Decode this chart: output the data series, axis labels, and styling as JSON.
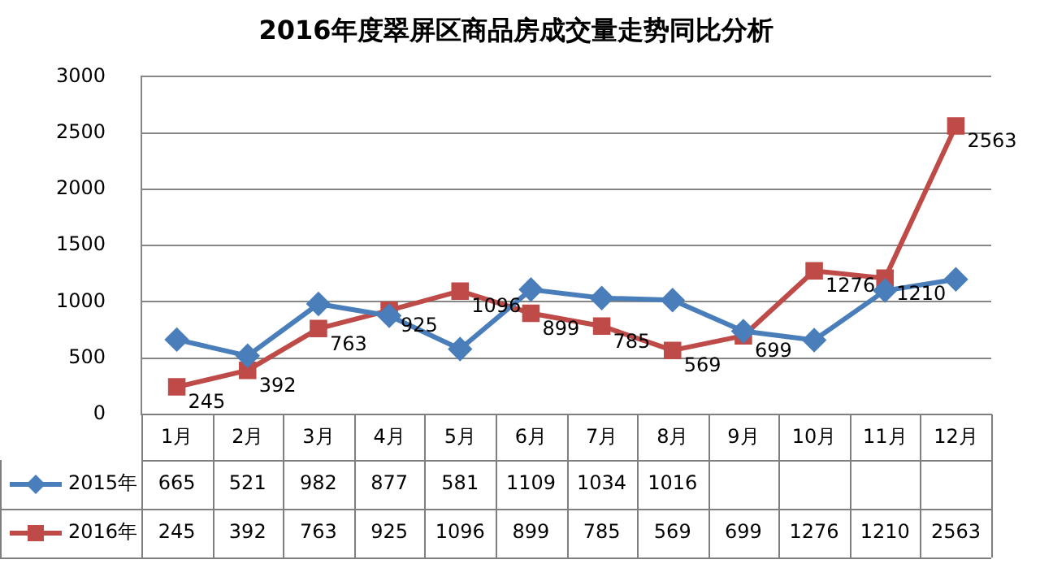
{
  "chart_data": {
    "type": "line",
    "title": "2016年度翠屏区商品房成交量走势同比分析",
    "categories": [
      "1月",
      "2月",
      "3月",
      "4月",
      "5月",
      "6月",
      "7月",
      "8月",
      "9月",
      "10月",
      "11月",
      "12月"
    ],
    "series": [
      {
        "name": "2015年",
        "color": "#4a7ebb",
        "marker": "diamond",
        "values": [
          665,
          521,
          982,
          877,
          581,
          1109,
          1034,
          1016,
          740,
          660,
          1100,
          1200
        ],
        "value_labels": [
          "665",
          "521",
          "982",
          "877",
          "581",
          "1109",
          "1034",
          "1016",
          null,
          null,
          null,
          null
        ]
      },
      {
        "name": "2016年",
        "color": "#be4b48",
        "marker": "square",
        "values": [
          245,
          392,
          763,
          925,
          1096,
          899,
          785,
          569,
          699,
          1276,
          1210,
          2563
        ],
        "value_labels": [
          "245",
          "392",
          "763",
          "925",
          "1096",
          "899",
          "785",
          "569",
          "699",
          "1276",
          "1210",
          "2563"
        ]
      }
    ],
    "ylim": [
      0,
      3000
    ],
    "yticks": [
      0,
      500,
      1000,
      1500,
      2000,
      2500,
      3000
    ],
    "grid": "y",
    "legend": "bottom"
  }
}
